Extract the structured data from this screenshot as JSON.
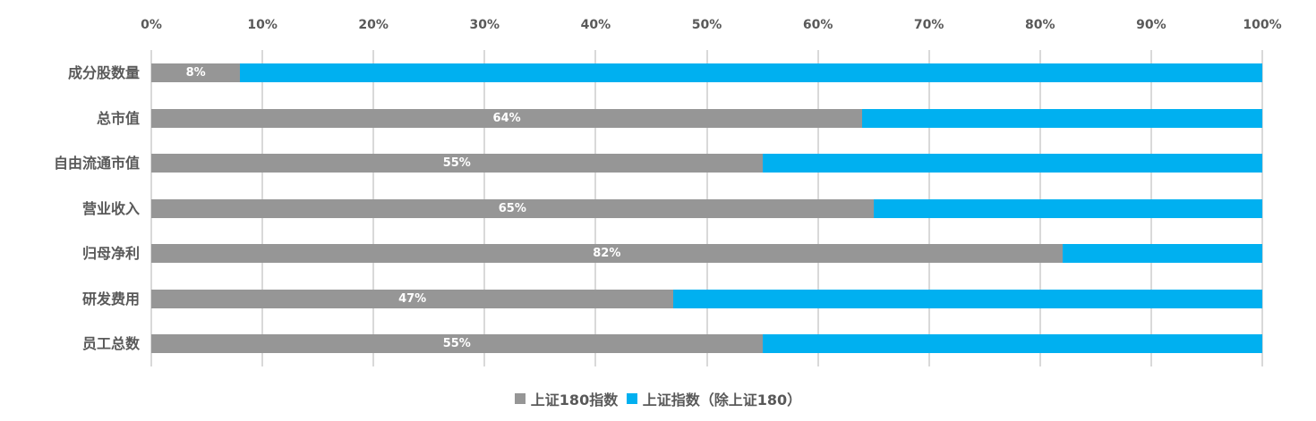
{
  "chart_data": {
    "type": "bar",
    "orientation": "horizontal",
    "stacked": "percent",
    "title": "",
    "xlabel": "",
    "ylabel": "",
    "xlim": [
      0,
      100
    ],
    "x_ticks": [
      "0%",
      "10%",
      "20%",
      "30%",
      "40%",
      "50%",
      "60%",
      "70%",
      "80%",
      "90%",
      "100%"
    ],
    "grid": true,
    "legend_position": "bottom",
    "categories": [
      "成分股数量",
      "总市值",
      "自由流通市值",
      "营业收入",
      "归母净利",
      "研发费用",
      "员工总数"
    ],
    "series": [
      {
        "name": "上证180指数",
        "color": "#969696",
        "values": [
          8,
          64,
          55,
          65,
          82,
          47,
          55
        ],
        "labels": [
          "8%",
          "64%",
          "55%",
          "65%",
          "82%",
          "47%",
          "55%"
        ]
      },
      {
        "name": "上证指数（除上证180）",
        "color": "#00b0f0",
        "values": [
          92,
          36,
          45,
          35,
          18,
          53,
          45
        ]
      }
    ]
  }
}
